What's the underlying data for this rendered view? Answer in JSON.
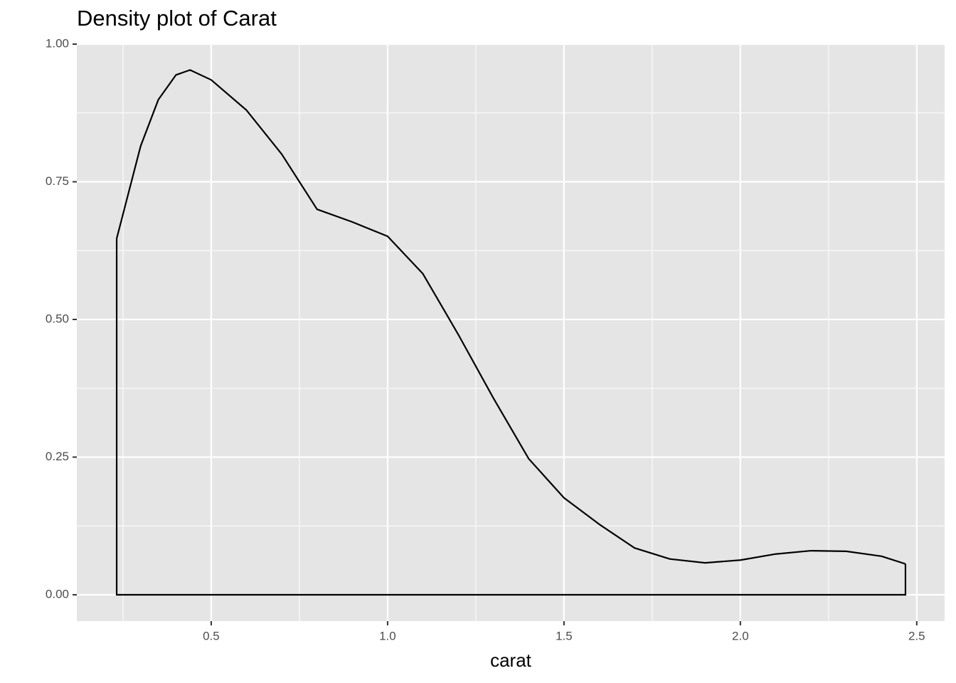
{
  "chart_data": {
    "type": "density",
    "title": "Density plot of Carat",
    "x_label": "carat",
    "x": [
      0.232,
      0.3,
      0.35,
      0.4,
      0.44,
      0.5,
      0.6,
      0.7,
      0.8,
      0.9,
      1.0,
      1.1,
      1.2,
      1.3,
      1.4,
      1.5,
      1.6,
      1.7,
      1.8,
      1.9,
      2.0,
      2.1,
      2.2,
      2.3,
      2.4,
      2.468
    ],
    "values": [
      0.647,
      0.815,
      0.899,
      0.944,
      0.953,
      0.935,
      0.88,
      0.8,
      0.7,
      0.677,
      0.651,
      0.583,
      0.473,
      0.357,
      0.247,
      0.176,
      0.128,
      0.085,
      0.065,
      0.058,
      0.063,
      0.074,
      0.08,
      0.079,
      0.07,
      0.056
    ],
    "color": "#000000",
    "xlim": [
      0.119,
      2.579
    ],
    "xticks": [
      0.5,
      {
        "value": 1,
        "label": "1.0"
      },
      1.5,
      {
        "value": 2,
        "label": "2.0"
      },
      2.5
    ],
    "ylim": [
      -0.0478,
      1.0
    ],
    "yticks": [
      {
        "value": 0,
        "label": "0.00"
      },
      0.25,
      {
        "value": 0.5,
        "label": "0.50"
      },
      0.75,
      {
        "value": 1,
        "label": "1.00"
      }
    ],
    "grid": true
  }
}
